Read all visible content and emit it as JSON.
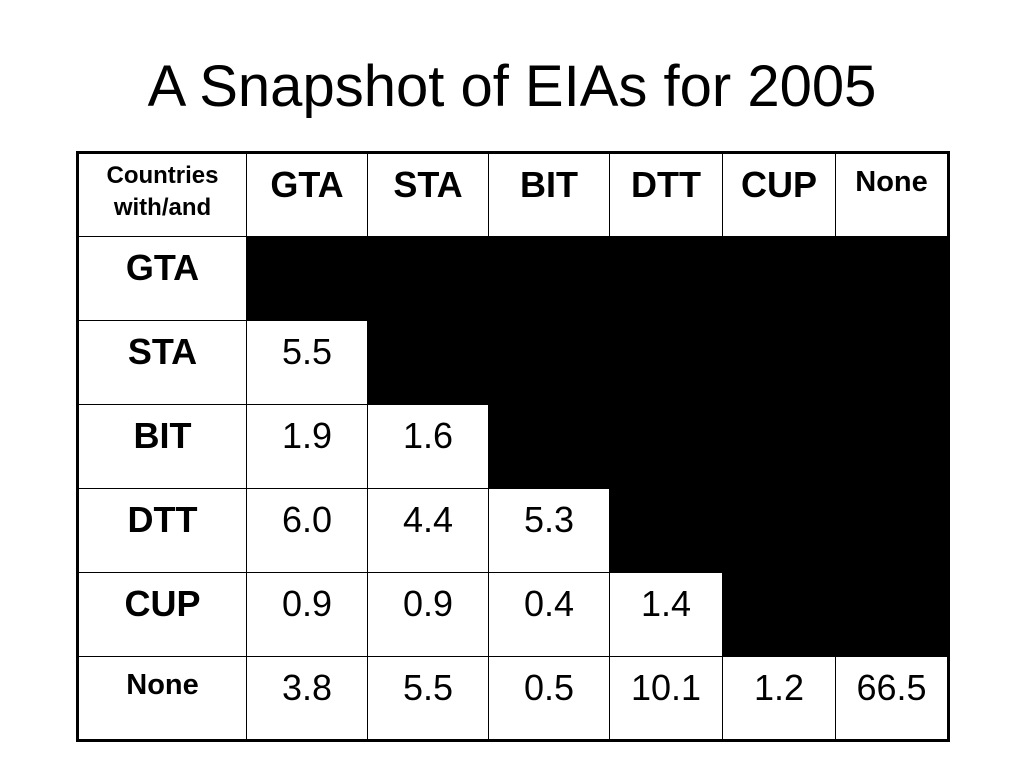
{
  "title": "A Snapshot of EIAs for 2005",
  "table": {
    "corner_label": "Countries with/and",
    "columns": [
      "GTA",
      "STA",
      "BIT",
      "DTT",
      "CUP",
      "None"
    ],
    "rows": [
      {
        "label": "GTA",
        "values": [
          "",
          "",
          "",
          "",
          "",
          ""
        ]
      },
      {
        "label": "STA",
        "values": [
          "5.5",
          "",
          "",
          "",
          "",
          ""
        ]
      },
      {
        "label": "BIT",
        "values": [
          "1.9",
          "1.6",
          "",
          "",
          "",
          ""
        ]
      },
      {
        "label": "DTT",
        "values": [
          "6.0",
          "4.4",
          "5.3",
          "",
          "",
          ""
        ]
      },
      {
        "label": "CUP",
        "values": [
          "0.9",
          "0.9",
          "0.4",
          "1.4",
          "",
          ""
        ]
      },
      {
        "label": "None",
        "values": [
          "3.8",
          "5.5",
          "0.5",
          "10.1",
          "1.2",
          "66.5"
        ]
      }
    ],
    "filled_cell_color": "#000000"
  }
}
